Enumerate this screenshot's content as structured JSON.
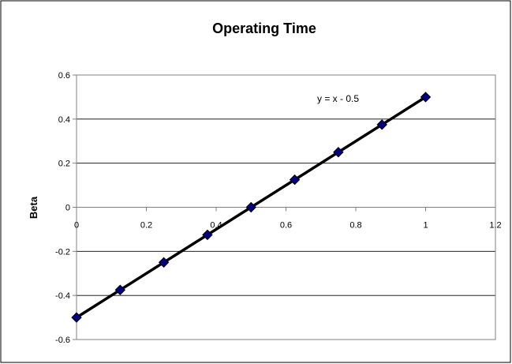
{
  "chart_data": {
    "type": "scatter",
    "title": "Operating Time",
    "xlabel": "",
    "ylabel": "Beta",
    "xlim": [
      0,
      1.2
    ],
    "ylim": [
      -0.6,
      0.6
    ],
    "x_ticks": [
      0,
      0.2,
      0.4,
      0.6,
      0.8,
      1,
      1.2
    ],
    "x_tick_labels": [
      "0",
      "0.2",
      "0.4",
      "0.6",
      "0.8",
      "1",
      "1.2"
    ],
    "y_ticks": [
      -0.6,
      -0.4,
      -0.2,
      0,
      0.2,
      0.4,
      0.6
    ],
    "y_tick_labels": [
      "-0.6",
      "-0.4",
      "-0.2",
      "0",
      "0.2",
      "0.4",
      "0.6"
    ],
    "grid": "horizontal major gridlines",
    "legend": "none",
    "series": [
      {
        "x": [
          0,
          0.125,
          0.25,
          0.375,
          0.5,
          0.625,
          0.75,
          0.875,
          1
        ],
        "y": [
          -0.5,
          -0.375,
          -0.25,
          -0.125,
          0,
          0.125,
          0.25,
          0.375,
          0.5
        ],
        "marker": "diamond",
        "marker_color": "#000080"
      }
    ],
    "trendline": {
      "type": "linear",
      "slope": 1,
      "intercept": -0.5,
      "x_range": [
        0,
        1
      ],
      "color": "#000000",
      "equation_label": "y = x - 0.5"
    }
  }
}
